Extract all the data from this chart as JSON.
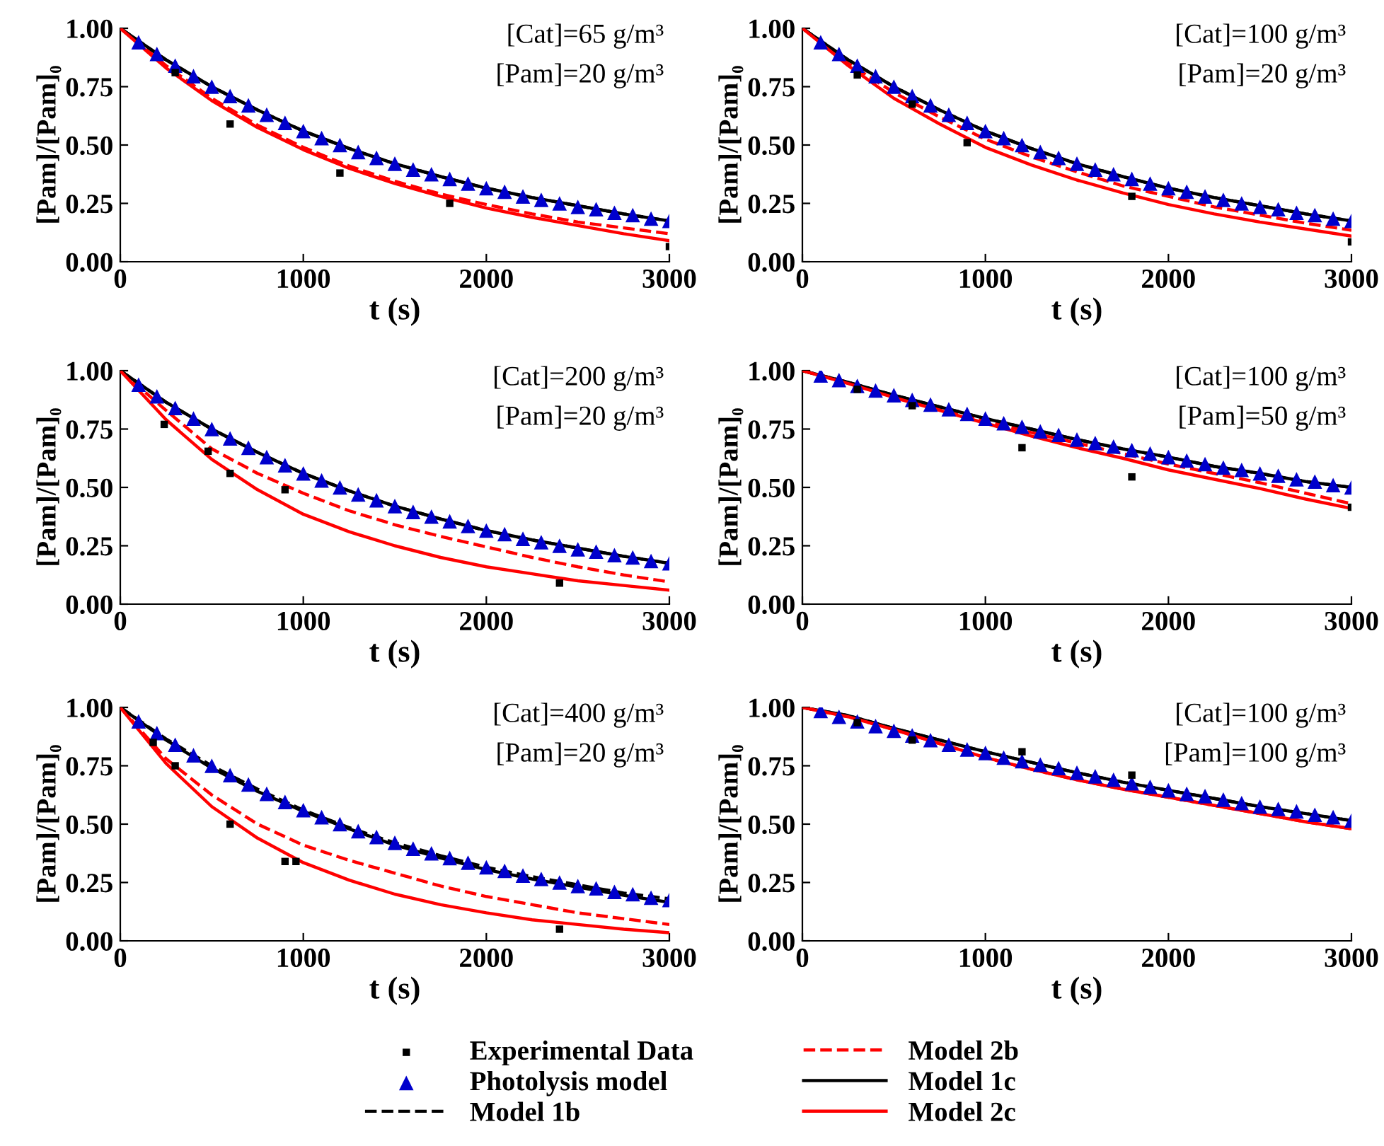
{
  "chart_data": [
    {
      "type": "line",
      "xlabel": "t (s)",
      "ylabel": "[Pam]/[Pam]₀",
      "xlim": [
        0,
        3000
      ],
      "xticks": [
        0,
        1000,
        2000,
        3000
      ],
      "ylim": [
        0,
        1
      ],
      "yticks": [
        {
          "value": 0,
          "label": "0.00"
        },
        {
          "value": 0.25,
          "label": "0.25"
        },
        {
          "value": 0.5,
          "label": "0.50"
        },
        {
          "value": 0.75,
          "label": "0.75"
        },
        {
          "value": 1,
          "label": "1.00"
        }
      ],
      "grid": false,
      "legend": "bottom",
      "annotations": [
        "[Cat]=65 g/m³",
        "[Pam]=20 g/m³"
      ],
      "series": [
        {
          "name": "Experimental Data",
          "type": "scatter",
          "marker": "square",
          "color": "#000000",
          "x": [
            300,
            600,
            1200,
            1800,
            3000
          ],
          "values": [
            0.81,
            0.59,
            0.38,
            0.25,
            0.065
          ]
        },
        {
          "name": "Photolysis model",
          "type": "scatter",
          "marker": "triangle",
          "color": "#0000cc",
          "x": [
            100,
            200,
            300,
            400,
            500,
            600,
            700,
            800,
            900,
            1000,
            1100,
            1200,
            1300,
            1400,
            1500,
            1600,
            1700,
            1800,
            1900,
            2000,
            2100,
            2200,
            2300,
            2400,
            2500,
            2600,
            2700,
            2800,
            2900,
            3000
          ],
          "values": [
            0.94,
            0.89,
            0.84,
            0.795,
            0.75,
            0.71,
            0.67,
            0.63,
            0.595,
            0.56,
            0.53,
            0.5,
            0.47,
            0.445,
            0.42,
            0.395,
            0.375,
            0.355,
            0.335,
            0.315,
            0.3,
            0.28,
            0.265,
            0.25,
            0.235,
            0.225,
            0.21,
            0.2,
            0.185,
            0.175
          ]
        },
        {
          "name": "Model 1b",
          "line_style": "dashed",
          "color": "#000000",
          "x": [
            0,
            250,
            500,
            750,
            1000,
            1250,
            1500,
            1750,
            2000,
            2250,
            2500,
            2750,
            3000
          ],
          "values": [
            1,
            0.865,
            0.75,
            0.65,
            0.56,
            0.485,
            0.42,
            0.365,
            0.315,
            0.275,
            0.24,
            0.205,
            0.175
          ]
        },
        {
          "name": "Model 2b",
          "line_style": "dashed",
          "color": "#ff0000",
          "x": [
            0,
            250,
            500,
            750,
            1000,
            1250,
            1500,
            1750,
            2000,
            2250,
            2500,
            2750,
            3000
          ],
          "values": [
            1,
            0.84,
            0.7,
            0.585,
            0.49,
            0.41,
            0.345,
            0.29,
            0.245,
            0.205,
            0.17,
            0.145,
            0.12
          ]
        },
        {
          "name": "Model 1c",
          "line_style": "solid",
          "color": "#000000",
          "x": [
            0,
            250,
            500,
            750,
            1000,
            1250,
            1500,
            1750,
            2000,
            2250,
            2500,
            2750,
            3000
          ],
          "values": [
            1,
            0.865,
            0.75,
            0.65,
            0.56,
            0.485,
            0.42,
            0.365,
            0.315,
            0.275,
            0.24,
            0.205,
            0.175
          ]
        },
        {
          "name": "Model 2c",
          "line_style": "solid",
          "color": "#ff0000",
          "x": [
            0,
            250,
            500,
            750,
            1000,
            1250,
            1500,
            1750,
            2000,
            2250,
            2500,
            2750,
            3000
          ],
          "values": [
            1,
            0.83,
            0.69,
            0.575,
            0.48,
            0.4,
            0.335,
            0.28,
            0.23,
            0.19,
            0.155,
            0.12,
            0.09
          ]
        }
      ]
    },
    {
      "type": "line",
      "xlabel": "t (s)",
      "ylabel": "[Pam]/[Pam]₀",
      "xlim": [
        0,
        3000
      ],
      "xticks": [
        0,
        1000,
        2000,
        3000
      ],
      "ylim": [
        0,
        1
      ],
      "yticks": [
        {
          "value": 0,
          "label": "0.00"
        },
        {
          "value": 0.25,
          "label": "0.25"
        },
        {
          "value": 0.5,
          "label": "0.50"
        },
        {
          "value": 0.75,
          "label": "0.75"
        },
        {
          "value": 1,
          "label": "1.00"
        }
      ],
      "grid": false,
      "annotations": [
        "[Cat]=100 g/m³",
        "[Pam]=20 g/m³"
      ],
      "series": [
        {
          "type": "scatter",
          "marker": "square",
          "color": "#000000",
          "x": [
            300,
            600,
            900,
            1800,
            3000
          ],
          "values": [
            0.8,
            0.675,
            0.51,
            0.28,
            0.085
          ]
        },
        {
          "type": "scatter",
          "marker": "triangle",
          "color": "#0000cc",
          "x": [
            100,
            200,
            300,
            400,
            500,
            600,
            700,
            800,
            900,
            1000,
            1100,
            1200,
            1300,
            1400,
            1500,
            1600,
            1700,
            1800,
            1900,
            2000,
            2100,
            2200,
            2300,
            2400,
            2500,
            2600,
            2700,
            2800,
            2900,
            3000
          ],
          "values": [
            0.94,
            0.89,
            0.84,
            0.795,
            0.75,
            0.71,
            0.67,
            0.63,
            0.595,
            0.56,
            0.53,
            0.5,
            0.47,
            0.445,
            0.42,
            0.395,
            0.375,
            0.355,
            0.335,
            0.315,
            0.3,
            0.28,
            0.265,
            0.25,
            0.235,
            0.225,
            0.21,
            0.2,
            0.185,
            0.175
          ]
        },
        {
          "line_style": "dashed",
          "color": "#000000",
          "x": [
            0,
            250,
            500,
            750,
            1000,
            1250,
            1500,
            1750,
            2000,
            2250,
            2500,
            2750,
            3000
          ],
          "values": [
            1,
            0.865,
            0.75,
            0.65,
            0.56,
            0.485,
            0.42,
            0.365,
            0.315,
            0.275,
            0.24,
            0.205,
            0.175
          ]
        },
        {
          "line_style": "dashed",
          "color": "#ff0000",
          "x": [
            0,
            250,
            500,
            750,
            1000,
            1250,
            1500,
            1750,
            2000,
            2250,
            2500,
            2750,
            3000
          ],
          "values": [
            1,
            0.85,
            0.725,
            0.62,
            0.525,
            0.45,
            0.385,
            0.325,
            0.28,
            0.235,
            0.2,
            0.165,
            0.135
          ]
        },
        {
          "line_style": "solid",
          "color": "#000000",
          "x": [
            0,
            250,
            500,
            750,
            1000,
            1250,
            1500,
            1750,
            2000,
            2250,
            2500,
            2750,
            3000
          ],
          "values": [
            1,
            0.865,
            0.75,
            0.65,
            0.56,
            0.485,
            0.42,
            0.365,
            0.315,
            0.275,
            0.24,
            0.205,
            0.175
          ]
        },
        {
          "line_style": "solid",
          "color": "#ff0000",
          "x": [
            0,
            250,
            500,
            750,
            1000,
            1250,
            1500,
            1750,
            2000,
            2250,
            2500,
            2750,
            3000
          ],
          "values": [
            1,
            0.84,
            0.7,
            0.59,
            0.49,
            0.415,
            0.35,
            0.295,
            0.245,
            0.205,
            0.17,
            0.14,
            0.11
          ]
        }
      ]
    },
    {
      "type": "line",
      "xlabel": "t (s)",
      "ylabel": "[Pam]/[Pam]₀",
      "xlim": [
        0,
        3000
      ],
      "xticks": [
        0,
        1000,
        2000,
        3000
      ],
      "ylim": [
        0,
        1
      ],
      "yticks": [
        {
          "value": 0,
          "label": "0.00"
        },
        {
          "value": 0.25,
          "label": "0.25"
        },
        {
          "value": 0.5,
          "label": "0.50"
        },
        {
          "value": 0.75,
          "label": "0.75"
        },
        {
          "value": 1,
          "label": "1.00"
        }
      ],
      "grid": false,
      "annotations": [
        "[Cat]=200 g/m³",
        "[Pam]=20 g/m³"
      ],
      "series": [
        {
          "type": "scatter",
          "marker": "square",
          "color": "#000000",
          "x": [
            240,
            480,
            600,
            900,
            2400
          ],
          "values": [
            0.77,
            0.655,
            0.56,
            0.49,
            0.09
          ]
        },
        {
          "type": "scatter",
          "marker": "triangle",
          "color": "#0000cc",
          "x": [
            100,
            200,
            300,
            400,
            500,
            600,
            700,
            800,
            900,
            1000,
            1100,
            1200,
            1300,
            1400,
            1500,
            1600,
            1700,
            1800,
            1900,
            2000,
            2100,
            2200,
            2300,
            2400,
            2500,
            2600,
            2700,
            2800,
            2900,
            3000
          ],
          "values": [
            0.94,
            0.89,
            0.84,
            0.795,
            0.75,
            0.71,
            0.67,
            0.63,
            0.595,
            0.56,
            0.53,
            0.5,
            0.47,
            0.445,
            0.42,
            0.395,
            0.375,
            0.355,
            0.335,
            0.315,
            0.3,
            0.28,
            0.265,
            0.25,
            0.235,
            0.225,
            0.21,
            0.2,
            0.185,
            0.175
          ]
        },
        {
          "line_style": "dashed",
          "color": "#000000",
          "x": [
            0,
            250,
            500,
            750,
            1000,
            1250,
            1500,
            1750,
            2000,
            2250,
            2500,
            2750,
            3000
          ],
          "values": [
            1,
            0.865,
            0.75,
            0.65,
            0.56,
            0.485,
            0.42,
            0.365,
            0.315,
            0.275,
            0.24,
            0.205,
            0.175
          ]
        },
        {
          "line_style": "dashed",
          "color": "#ff0000",
          "x": [
            0,
            250,
            500,
            750,
            1000,
            1250,
            1500,
            1750,
            2000,
            2250,
            2500,
            2750,
            3000
          ],
          "values": [
            1,
            0.83,
            0.665,
            0.56,
            0.475,
            0.4,
            0.34,
            0.29,
            0.245,
            0.2,
            0.16,
            0.125,
            0.095
          ]
        },
        {
          "line_style": "solid",
          "color": "#000000",
          "x": [
            0,
            250,
            500,
            750,
            1000,
            1250,
            1500,
            1750,
            2000,
            2250,
            2500,
            2750,
            3000
          ],
          "values": [
            1,
            0.865,
            0.75,
            0.65,
            0.56,
            0.485,
            0.42,
            0.365,
            0.315,
            0.275,
            0.24,
            0.205,
            0.175
          ]
        },
        {
          "line_style": "solid",
          "color": "#ff0000",
          "x": [
            0,
            250,
            500,
            750,
            1000,
            1250,
            1500,
            1750,
            2000,
            2250,
            2500,
            2750,
            3000
          ],
          "values": [
            1,
            0.79,
            0.62,
            0.49,
            0.385,
            0.31,
            0.25,
            0.2,
            0.16,
            0.13,
            0.1,
            0.08,
            0.06
          ]
        }
      ]
    },
    {
      "type": "line",
      "xlabel": "t (s)",
      "ylabel": "[Pam]/[Pam]₀",
      "xlim": [
        0,
        3000
      ],
      "xticks": [
        0,
        1000,
        2000,
        3000
      ],
      "ylim": [
        0,
        1
      ],
      "yticks": [
        {
          "value": 0,
          "label": "0.00"
        },
        {
          "value": 0.25,
          "label": "0.25"
        },
        {
          "value": 0.5,
          "label": "0.50"
        },
        {
          "value": 0.75,
          "label": "0.75"
        },
        {
          "value": 1,
          "label": "1.00"
        }
      ],
      "grid": false,
      "annotations": [
        "[Cat]=100 g/m³",
        "[Pam]=50 g/m³"
      ],
      "series": [
        {
          "type": "scatter",
          "marker": "square",
          "color": "#000000",
          "x": [
            300,
            600,
            1200,
            1800,
            3000
          ],
          "values": [
            0.92,
            0.85,
            0.67,
            0.545,
            0.415
          ]
        },
        {
          "type": "scatter",
          "marker": "triangle",
          "color": "#0000cc",
          "x": [
            100,
            200,
            300,
            400,
            500,
            600,
            700,
            800,
            900,
            1000,
            1100,
            1200,
            1300,
            1400,
            1500,
            1600,
            1700,
            1800,
            1900,
            2000,
            2100,
            2200,
            2300,
            2400,
            2500,
            2600,
            2700,
            2800,
            2900,
            3000
          ],
          "values": [
            0.98,
            0.96,
            0.935,
            0.915,
            0.895,
            0.875,
            0.855,
            0.835,
            0.815,
            0.795,
            0.775,
            0.76,
            0.74,
            0.725,
            0.705,
            0.69,
            0.675,
            0.66,
            0.645,
            0.63,
            0.615,
            0.6,
            0.585,
            0.575,
            0.56,
            0.55,
            0.535,
            0.525,
            0.51,
            0.5
          ]
        },
        {
          "line_style": "dashed",
          "color": "#000000",
          "x": [
            0,
            250,
            500,
            750,
            1000,
            1250,
            1500,
            1750,
            2000,
            2250,
            2500,
            2750,
            3000
          ],
          "values": [
            1,
            0.95,
            0.895,
            0.845,
            0.795,
            0.75,
            0.705,
            0.665,
            0.63,
            0.59,
            0.56,
            0.525,
            0.5
          ]
        },
        {
          "line_style": "dashed",
          "color": "#ff0000",
          "x": [
            0,
            250,
            500,
            750,
            1000,
            1250,
            1500,
            1750,
            2000,
            2250,
            2500,
            2750,
            3000
          ],
          "values": [
            1,
            0.95,
            0.89,
            0.835,
            0.785,
            0.735,
            0.69,
            0.645,
            0.6,
            0.56,
            0.52,
            0.475,
            0.43
          ]
        },
        {
          "line_style": "solid",
          "color": "#000000",
          "x": [
            0,
            250,
            500,
            750,
            1000,
            1250,
            1500,
            1750,
            2000,
            2250,
            2500,
            2750,
            3000
          ],
          "values": [
            1,
            0.95,
            0.895,
            0.845,
            0.795,
            0.75,
            0.705,
            0.665,
            0.63,
            0.59,
            0.56,
            0.525,
            0.5
          ]
        },
        {
          "line_style": "solid",
          "color": "#ff0000",
          "x": [
            0,
            250,
            500,
            750,
            1000,
            1250,
            1500,
            1750,
            2000,
            2250,
            2500,
            2750,
            3000
          ],
          "values": [
            1,
            0.945,
            0.885,
            0.83,
            0.775,
            0.72,
            0.67,
            0.625,
            0.575,
            0.535,
            0.495,
            0.45,
            0.41
          ]
        }
      ]
    },
    {
      "type": "line",
      "xlabel": "t (s)",
      "ylabel": "[Pam]/[Pam]₀",
      "xlim": [
        0,
        3000
      ],
      "xticks": [
        0,
        1000,
        2000,
        3000
      ],
      "ylim": [
        0,
        1
      ],
      "yticks": [
        {
          "value": 0,
          "label": "0.00"
        },
        {
          "value": 0.25,
          "label": "0.25"
        },
        {
          "value": 0.5,
          "label": "0.50"
        },
        {
          "value": 0.75,
          "label": "0.75"
        },
        {
          "value": 1,
          "label": "1.00"
        }
      ],
      "grid": false,
      "annotations": [
        "[Cat]=400 g/m³",
        "[Pam]=20 g/m³"
      ],
      "series": [
        {
          "type": "scatter",
          "marker": "square",
          "color": "#000000",
          "x": [
            180,
            300,
            600,
            900,
            960,
            2400
          ],
          "values": [
            0.85,
            0.75,
            0.5,
            0.34,
            0.34,
            0.05
          ]
        },
        {
          "type": "scatter",
          "marker": "triangle",
          "color": "#0000cc",
          "x": [
            100,
            200,
            300,
            400,
            500,
            600,
            700,
            800,
            900,
            1000,
            1100,
            1200,
            1300,
            1400,
            1500,
            1600,
            1700,
            1800,
            1900,
            2000,
            2100,
            2200,
            2300,
            2400,
            2500,
            2600,
            2700,
            2800,
            2900,
            3000
          ],
          "values": [
            0.94,
            0.89,
            0.84,
            0.795,
            0.75,
            0.71,
            0.67,
            0.63,
            0.595,
            0.56,
            0.53,
            0.5,
            0.47,
            0.445,
            0.42,
            0.395,
            0.375,
            0.355,
            0.335,
            0.315,
            0.3,
            0.28,
            0.265,
            0.25,
            0.235,
            0.225,
            0.21,
            0.2,
            0.185,
            0.175
          ]
        },
        {
          "line_style": "dashed",
          "color": "#000000",
          "x": [
            0,
            250,
            500,
            750,
            1000,
            1250,
            1500,
            1750,
            2000,
            2250,
            2500,
            2750,
            3000
          ],
          "values": [
            1,
            0.865,
            0.75,
            0.65,
            0.56,
            0.485,
            0.42,
            0.365,
            0.315,
            0.275,
            0.24,
            0.205,
            0.18
          ]
        },
        {
          "line_style": "dashed",
          "color": "#ff0000",
          "x": [
            0,
            250,
            500,
            750,
            1000,
            1250,
            1500,
            1750,
            2000,
            2250,
            2500,
            2750,
            3000
          ],
          "values": [
            1,
            0.78,
            0.625,
            0.5,
            0.41,
            0.345,
            0.29,
            0.235,
            0.19,
            0.155,
            0.12,
            0.095,
            0.07
          ]
        },
        {
          "line_style": "solid",
          "color": "#000000",
          "x": [
            0,
            250,
            500,
            750,
            1000,
            1250,
            1500,
            1750,
            2000,
            2250,
            2500,
            2750,
            3000
          ],
          "values": [
            1,
            0.86,
            0.74,
            0.64,
            0.555,
            0.48,
            0.41,
            0.355,
            0.305,
            0.265,
            0.23,
            0.195,
            0.165
          ]
        },
        {
          "line_style": "solid",
          "color": "#ff0000",
          "x": [
            0,
            250,
            500,
            750,
            1000,
            1250,
            1500,
            1750,
            2000,
            2250,
            2500,
            2750,
            3000
          ],
          "values": [
            1,
            0.76,
            0.575,
            0.44,
            0.335,
            0.26,
            0.2,
            0.155,
            0.12,
            0.09,
            0.07,
            0.05,
            0.035
          ]
        }
      ]
    },
    {
      "type": "line",
      "xlabel": "t (s)",
      "ylabel": "[Pam]/[Pam]₀",
      "xlim": [
        0,
        3000
      ],
      "xticks": [
        0,
        1000,
        2000,
        3000
      ],
      "ylim": [
        0,
        1
      ],
      "yticks": [
        {
          "value": 0,
          "label": "0.00"
        },
        {
          "value": 0.25,
          "label": "0.25"
        },
        {
          "value": 0.5,
          "label": "0.50"
        },
        {
          "value": 0.75,
          "label": "0.75"
        },
        {
          "value": 1,
          "label": "1.00"
        }
      ],
      "grid": false,
      "annotations": [
        "[Cat]=100 g/m³",
        "[Pam]=100 g/m³"
      ],
      "series": [
        {
          "type": "scatter",
          "marker": "square",
          "color": "#000000",
          "x": [
            300,
            600,
            1200,
            1800
          ],
          "values": [
            0.935,
            0.86,
            0.81,
            0.71
          ]
        },
        {
          "type": "scatter",
          "marker": "triangle",
          "color": "#0000cc",
          "x": [
            100,
            200,
            300,
            400,
            500,
            600,
            700,
            800,
            900,
            1000,
            1100,
            1200,
            1300,
            1400,
            1500,
            1600,
            1700,
            1800,
            1900,
            2000,
            2100,
            2200,
            2300,
            2400,
            2500,
            2600,
            2700,
            2800,
            2900,
            3000
          ],
          "values": [
            0.985,
            0.96,
            0.94,
            0.92,
            0.9,
            0.88,
            0.86,
            0.84,
            0.82,
            0.805,
            0.785,
            0.77,
            0.755,
            0.74,
            0.72,
            0.705,
            0.69,
            0.675,
            0.66,
            0.645,
            0.63,
            0.62,
            0.605,
            0.59,
            0.575,
            0.565,
            0.555,
            0.54,
            0.53,
            0.515
          ]
        },
        {
          "line_style": "dashed",
          "color": "#000000",
          "x": [
            0,
            250,
            500,
            750,
            1000,
            1250,
            1500,
            1750,
            2000,
            2250,
            2500,
            2750,
            3000
          ],
          "values": [
            1,
            0.965,
            0.91,
            0.86,
            0.81,
            0.765,
            0.72,
            0.68,
            0.645,
            0.61,
            0.575,
            0.545,
            0.515
          ]
        },
        {
          "line_style": "dashed",
          "color": "#ff0000",
          "x": [
            0,
            250,
            500,
            750,
            1000,
            1250,
            1500,
            1750,
            2000,
            2250,
            2500,
            2750,
            3000
          ],
          "values": [
            1,
            0.96,
            0.905,
            0.845,
            0.785,
            0.735,
            0.69,
            0.65,
            0.615,
            0.58,
            0.545,
            0.51,
            0.48
          ]
        },
        {
          "line_style": "solid",
          "color": "#000000",
          "x": [
            0,
            250,
            500,
            750,
            1000,
            1250,
            1500,
            1750,
            2000,
            2250,
            2500,
            2750,
            3000
          ],
          "values": [
            1,
            0.965,
            0.91,
            0.86,
            0.81,
            0.765,
            0.72,
            0.68,
            0.645,
            0.61,
            0.575,
            0.545,
            0.515
          ]
        },
        {
          "line_style": "solid",
          "color": "#ff0000",
          "x": [
            0,
            250,
            500,
            750,
            1000,
            1250,
            1500,
            1750,
            2000,
            2250,
            2500,
            2750,
            3000
          ],
          "values": [
            1,
            0.96,
            0.905,
            0.845,
            0.785,
            0.735,
            0.69,
            0.65,
            0.615,
            0.58,
            0.545,
            0.51,
            0.48
          ]
        }
      ]
    }
  ]
}
